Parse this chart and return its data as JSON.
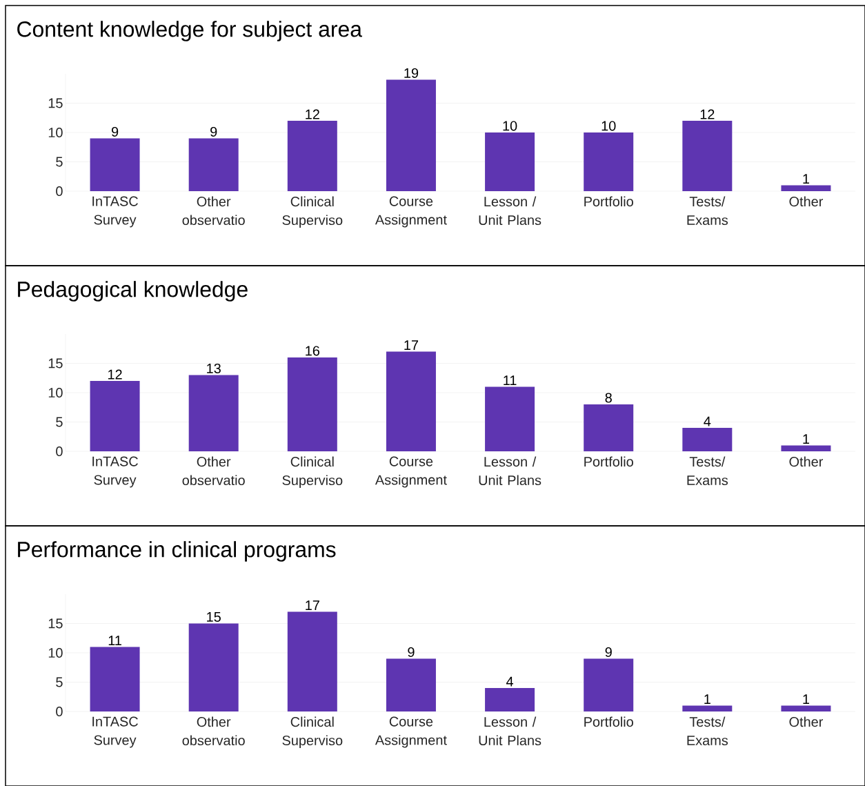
{
  "chart_data": [
    {
      "type": "bar",
      "title": "Content knowledge for subject area",
      "categories": [
        "InTASC Survey",
        "Other observatio",
        "Clinical Superviso",
        "Course Assignment",
        "Lesson / Unit Plans",
        "Portfolio",
        "Tests/ Exams",
        "Other"
      ],
      "values": [
        9,
        9,
        12,
        19,
        10,
        10,
        12,
        1
      ],
      "color": "#5e35b1",
      "ylim": [
        0,
        20
      ],
      "yticks": [
        0,
        5,
        10,
        15
      ],
      "grid": "y",
      "data_labels": true
    },
    {
      "type": "bar",
      "title": "Pedagogical knowledge",
      "categories": [
        "InTASC Survey",
        "Other observatio",
        "Clinical Superviso",
        "Course Assignment",
        "Lesson / Unit Plans",
        "Portfolio",
        "Tests/ Exams",
        "Other"
      ],
      "values": [
        12,
        13,
        16,
        17,
        11,
        8,
        4,
        1
      ],
      "color": "#5e35b1",
      "ylim": [
        0,
        20
      ],
      "yticks": [
        0,
        5,
        10,
        15
      ],
      "grid": "y",
      "data_labels": true
    },
    {
      "type": "bar",
      "title": "Performance in clinical programs",
      "categories": [
        "InTASC Survey",
        "Other observatio",
        "Clinical Superviso",
        "Course Assignment",
        "Lesson / Unit Plans",
        "Portfolio",
        "Tests/ Exams",
        "Other"
      ],
      "values": [
        11,
        15,
        17,
        9,
        4,
        9,
        1,
        1
      ],
      "color": "#5e35b1",
      "ylim": [
        0,
        20
      ],
      "yticks": [
        0,
        5,
        10,
        15
      ],
      "grid": "y",
      "data_labels": true
    }
  ]
}
